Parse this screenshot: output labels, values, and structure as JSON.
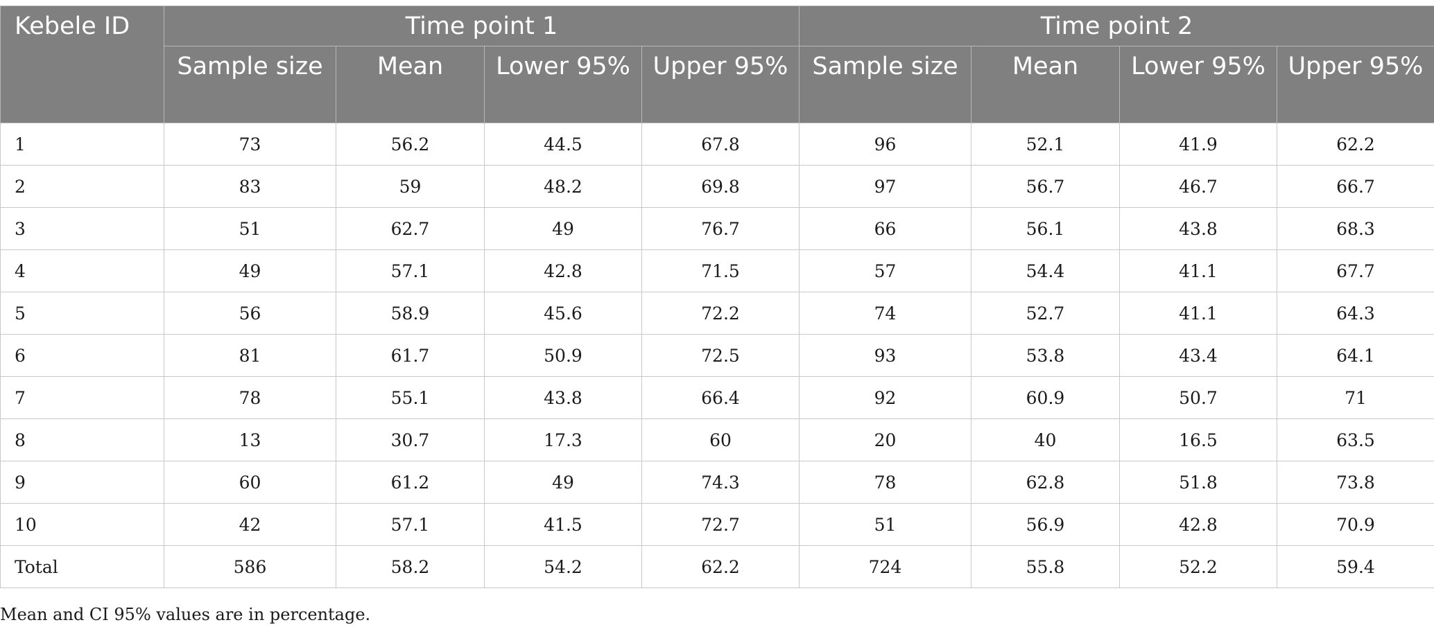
{
  "table": {
    "id_header": "Kebele ID",
    "groups": [
      "Time point 1",
      "Time point 2"
    ],
    "subheaders": [
      "Sample size",
      "Mean",
      "Lower 95%",
      "Upper 95%",
      "Sample size",
      "Mean",
      "Lower 95%",
      "Upper 95%"
    ],
    "rows": [
      [
        "1",
        "73",
        "56.2",
        "44.5",
        "67.8",
        "96",
        "52.1",
        "41.9",
        "62.2"
      ],
      [
        "2",
        "83",
        "59",
        "48.2",
        "69.8",
        "97",
        "56.7",
        "46.7",
        "66.7"
      ],
      [
        "3",
        "51",
        "62.7",
        "49",
        "76.7",
        "66",
        "56.1",
        "43.8",
        "68.3"
      ],
      [
        "4",
        "49",
        "57.1",
        "42.8",
        "71.5",
        "57",
        "54.4",
        "41.1",
        "67.7"
      ],
      [
        "5",
        "56",
        "58.9",
        "45.6",
        "72.2",
        "74",
        "52.7",
        "41.1",
        "64.3"
      ],
      [
        "6",
        "81",
        "61.7",
        "50.9",
        "72.5",
        "93",
        "53.8",
        "43.4",
        "64.1"
      ],
      [
        "7",
        "78",
        "55.1",
        "43.8",
        "66.4",
        "92",
        "60.9",
        "50.7",
        "71"
      ],
      [
        "8",
        "13",
        "30.7",
        "17.3",
        "60",
        "20",
        "40",
        "16.5",
        "63.5"
      ],
      [
        "9",
        "60",
        "61.2",
        "49",
        "74.3",
        "78",
        "62.8",
        "51.8",
        "73.8"
      ],
      [
        "10",
        "42",
        "57.1",
        "41.5",
        "72.7",
        "51",
        "56.9",
        "42.8",
        "70.9"
      ],
      [
        "Total",
        "586",
        "58.2",
        "54.2",
        "62.2",
        "724",
        "55.8",
        "52.2",
        "59.4"
      ]
    ]
  },
  "footnote": "Mean and CI 95% values are in percentage."
}
